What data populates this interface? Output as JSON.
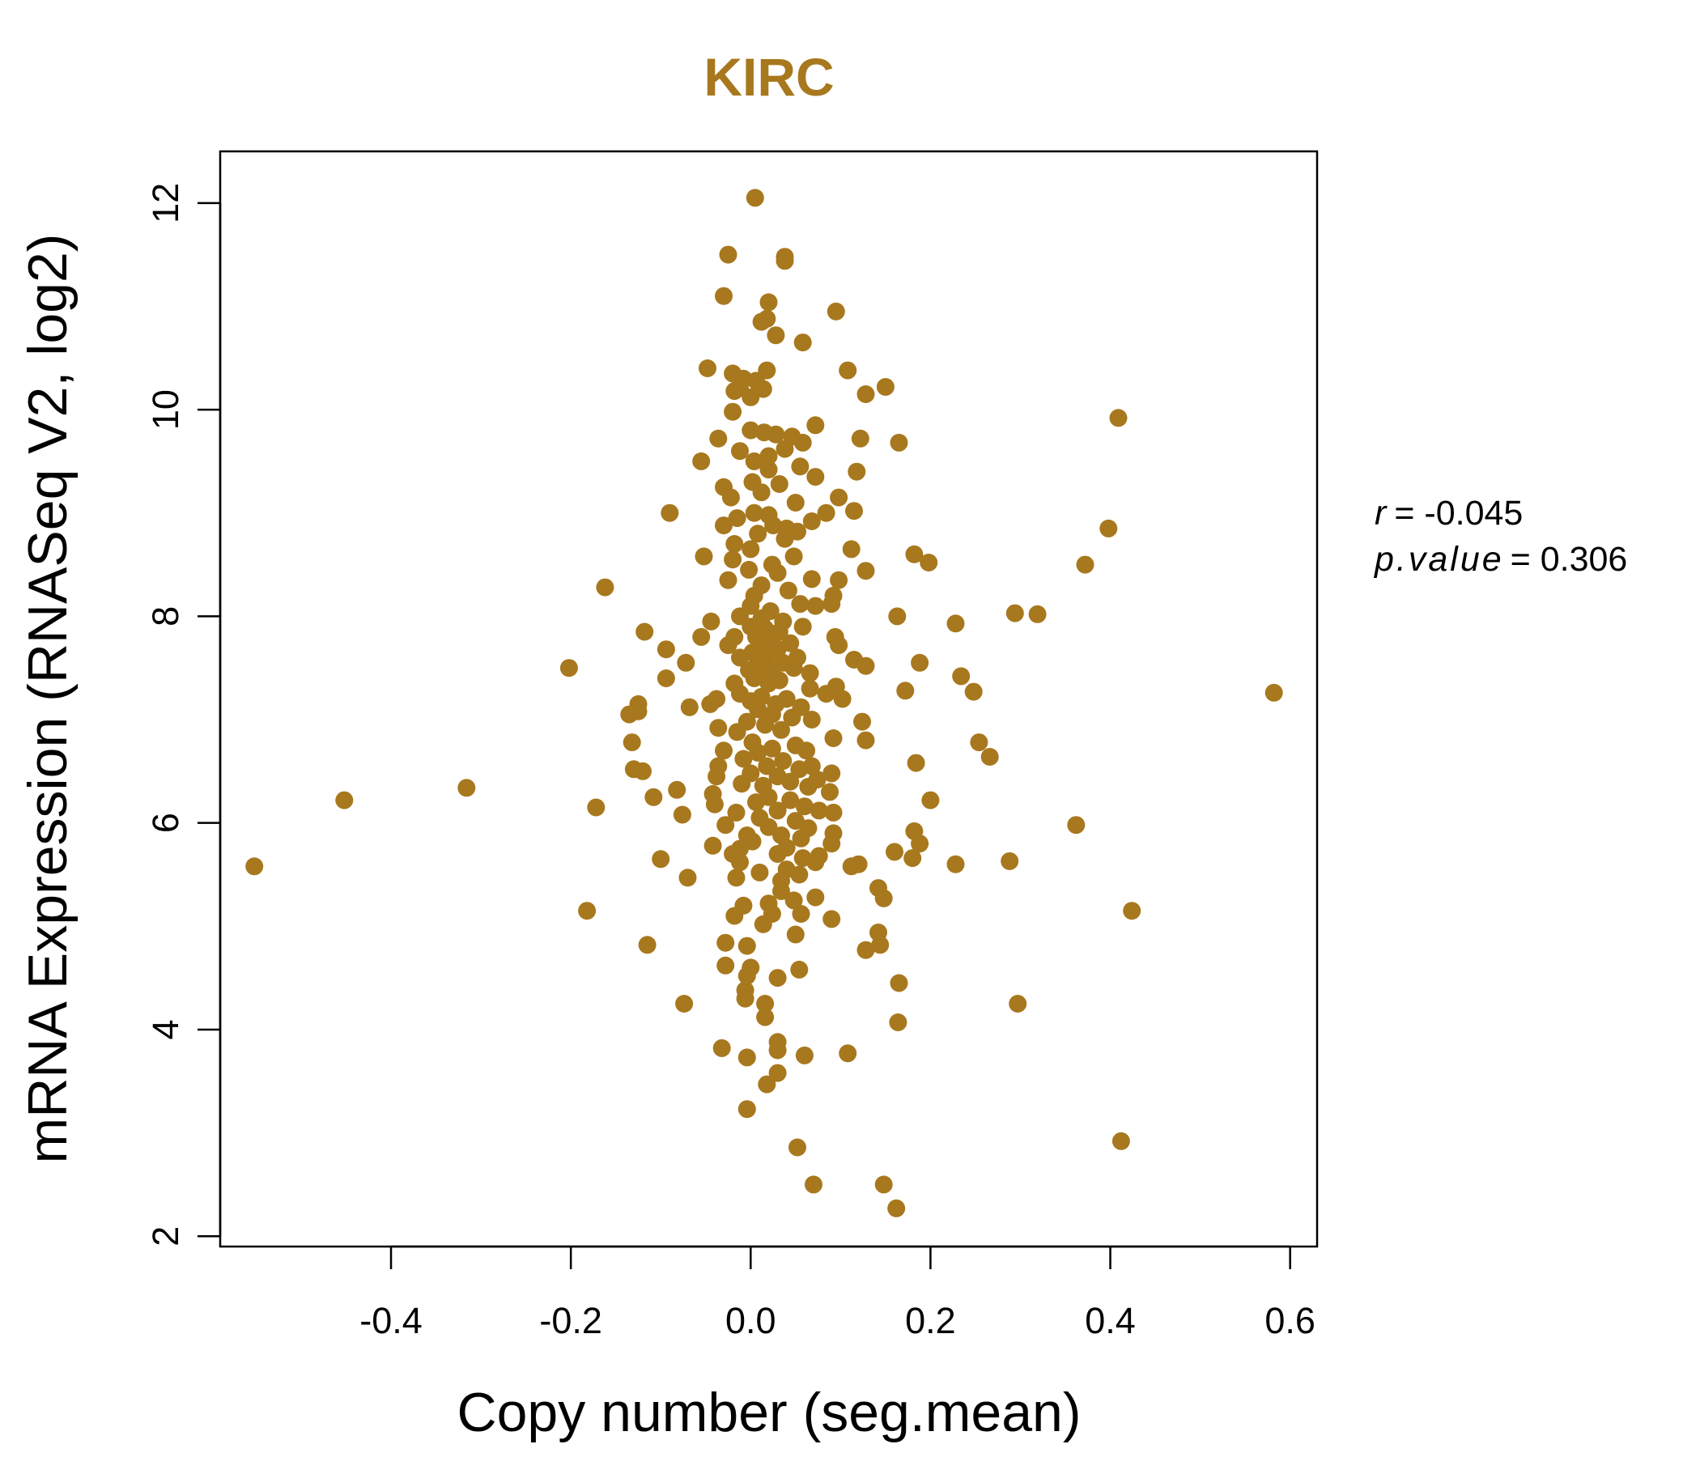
{
  "chart_data": {
    "type": "scatter",
    "title": "KIRC",
    "xlabel": "Copy number (seg.mean)",
    "ylabel": "mRNA Expression (RNASeq V2, log2)",
    "xlim": [
      -0.59,
      0.63
    ],
    "ylim": [
      1.9,
      12.5
    ],
    "xticks": [
      -0.4,
      -0.2,
      0.0,
      0.2,
      0.4,
      0.6
    ],
    "xtick_labels": [
      "-0.4",
      "-0.2",
      "0.0",
      "0.2",
      "0.4",
      "0.6"
    ],
    "yticks": [
      2,
      4,
      6,
      8,
      10,
      12
    ],
    "ytick_labels": [
      "2",
      "4",
      "6",
      "8",
      "10",
      "12"
    ],
    "grid": false,
    "point_color": "#A8781E",
    "stats": {
      "r_label": "r",
      "r_value": "= -0.045",
      "p_label": "p.value",
      "p_value": "= 0.306"
    },
    "points": [
      [
        0.005,
        12.05
      ],
      [
        -0.025,
        11.5
      ],
      [
        0.038,
        11.48
      ],
      [
        0.038,
        11.44
      ],
      [
        -0.03,
        11.1
      ],
      [
        0.02,
        11.04
      ],
      [
        0.095,
        10.95
      ],
      [
        0.018,
        10.88
      ],
      [
        0.012,
        10.85
      ],
      [
        0.028,
        10.72
      ],
      [
        0.058,
        10.65
      ],
      [
        -0.048,
        10.4
      ],
      [
        -0.02,
        10.35
      ],
      [
        0.018,
        10.38
      ],
      [
        0.108,
        10.38
      ],
      [
        0.15,
        10.22
      ],
      [
        0.128,
        10.15
      ],
      [
        -0.008,
        10.3
      ],
      [
        0.006,
        10.28
      ],
      [
        -0.012,
        10.21
      ],
      [
        -0.018,
        10.18
      ],
      [
        0.014,
        10.2
      ],
      [
        0.0,
        10.12
      ],
      [
        -0.02,
        9.98
      ],
      [
        0.0,
        9.8
      ],
      [
        0.015,
        9.78
      ],
      [
        0.028,
        9.76
      ],
      [
        0.046,
        9.74
      ],
      [
        0.072,
        9.85
      ],
      [
        0.122,
        9.72
      ],
      [
        0.165,
        9.68
      ],
      [
        0.409,
        9.92
      ],
      [
        -0.036,
        9.72
      ],
      [
        -0.055,
        9.5
      ],
      [
        -0.012,
        9.6
      ],
      [
        0.02,
        9.55
      ],
      [
        0.038,
        9.62
      ],
      [
        0.058,
        9.68
      ],
      [
        0.004,
        9.5
      ],
      [
        0.02,
        9.42
      ],
      [
        0.055,
        9.45
      ],
      [
        0.072,
        9.35
      ],
      [
        0.118,
        9.4
      ],
      [
        0.002,
        9.3
      ],
      [
        0.032,
        9.28
      ],
      [
        -0.03,
        9.25
      ],
      [
        -0.022,
        9.15
      ],
      [
        0.012,
        9.2
      ],
      [
        0.098,
        9.15
      ],
      [
        0.05,
        9.1
      ],
      [
        -0.09,
        9.0
      ],
      [
        0.004,
        9.0
      ],
      [
        0.02,
        8.98
      ],
      [
        0.084,
        9.0
      ],
      [
        0.115,
        9.02
      ],
      [
        0.068,
        8.92
      ],
      [
        -0.015,
        8.95
      ],
      [
        0.025,
        8.88
      ],
      [
        0.04,
        8.85
      ],
      [
        -0.03,
        8.88
      ],
      [
        0.008,
        8.8
      ],
      [
        0.038,
        8.75
      ],
      [
        0.052,
        8.82
      ],
      [
        0.398,
        8.85
      ],
      [
        -0.018,
        8.7
      ],
      [
        0.0,
        8.65
      ],
      [
        0.112,
        8.65
      ],
      [
        0.182,
        8.6
      ],
      [
        0.198,
        8.52
      ],
      [
        0.372,
        8.5
      ],
      [
        -0.052,
        8.58
      ],
      [
        -0.02,
        8.55
      ],
      [
        0.024,
        8.5
      ],
      [
        0.048,
        8.58
      ],
      [
        0.128,
        8.44
      ],
      [
        -0.002,
        8.45
      ],
      [
        0.03,
        8.42
      ],
      [
        0.068,
        8.36
      ],
      [
        0.098,
        8.35
      ],
      [
        -0.025,
        8.35
      ],
      [
        0.012,
        8.3
      ],
      [
        -0.162,
        8.28
      ],
      [
        0.042,
        8.25
      ],
      [
        0.092,
        8.2
      ],
      [
        0.004,
        8.2
      ],
      [
        0.055,
        8.12
      ],
      [
        0.072,
        8.1
      ],
      [
        0.09,
        8.12
      ],
      [
        0.0,
        8.1
      ],
      [
        0.022,
        8.05
      ],
      [
        0.294,
        8.03
      ],
      [
        0.319,
        8.02
      ],
      [
        0.163,
        8.0
      ],
      [
        -0.012,
        8.0
      ],
      [
        0.012,
        7.98
      ],
      [
        0.036,
        7.95
      ],
      [
        -0.044,
        7.95
      ],
      [
        0.228,
        7.93
      ],
      [
        0.058,
        7.9
      ],
      [
        0.0,
        7.9
      ],
      [
        0.016,
        7.88
      ],
      [
        -0.118,
        7.85
      ],
      [
        0.032,
        7.85
      ],
      [
        -0.018,
        7.8
      ],
      [
        0.006,
        7.8
      ],
      [
        0.094,
        7.8
      ],
      [
        -0.055,
        7.8
      ],
      [
        0.024,
        7.75
      ],
      [
        0.044,
        7.74
      ],
      [
        0.098,
        7.72
      ],
      [
        -0.025,
        7.72
      ],
      [
        0.01,
        7.7
      ],
      [
        -0.094,
        7.68
      ],
      [
        0.03,
        7.68
      ],
      [
        0.002,
        7.65
      ],
      [
        0.018,
        7.62
      ],
      [
        0.052,
        7.6
      ],
      [
        0.115,
        7.58
      ],
      [
        -0.012,
        7.6
      ],
      [
        0.188,
        7.55
      ],
      [
        -0.072,
        7.55
      ],
      [
        0.008,
        7.55
      ],
      [
        0.036,
        7.55
      ],
      [
        0.128,
        7.52
      ],
      [
        -0.202,
        7.5
      ],
      [
        0.024,
        7.5
      ],
      [
        0.048,
        7.5
      ],
      [
        -0.002,
        7.48
      ],
      [
        0.014,
        7.45
      ],
      [
        0.066,
        7.45
      ],
      [
        0.234,
        7.42
      ],
      [
        -0.094,
        7.4
      ],
      [
        0.004,
        7.4
      ],
      [
        0.032,
        7.38
      ],
      [
        -0.018,
        7.35
      ],
      [
        0.02,
        7.35
      ],
      [
        0.095,
        7.32
      ],
      [
        0.066,
        7.3
      ],
      [
        0.172,
        7.28
      ],
      [
        0.248,
        7.27
      ],
      [
        0.582,
        7.26
      ],
      [
        -0.012,
        7.25
      ],
      [
        0.012,
        7.22
      ],
      [
        0.084,
        7.25
      ],
      [
        0.04,
        7.2
      ],
      [
        -0.038,
        7.2
      ],
      [
        0.102,
        7.2
      ],
      [
        0.0,
        7.18
      ],
      [
        0.028,
        7.15
      ],
      [
        -0.125,
        7.15
      ],
      [
        -0.045,
        7.15
      ],
      [
        0.056,
        7.12
      ],
      [
        -0.068,
        7.12
      ],
      [
        0.008,
        7.1
      ],
      [
        -0.125,
        7.08
      ],
      [
        0.024,
        7.05
      ],
      [
        -0.135,
        7.05
      ],
      [
        0.046,
        7.02
      ],
      [
        0.068,
        7.0
      ],
      [
        0.124,
        6.98
      ],
      [
        -0.004,
        6.98
      ],
      [
        -0.036,
        6.92
      ],
      [
        0.016,
        6.95
      ],
      [
        0.034,
        6.9
      ],
      [
        -0.015,
        6.88
      ],
      [
        0.092,
        6.82
      ],
      [
        0.128,
        6.8
      ],
      [
        0.254,
        6.78
      ],
      [
        -0.132,
        6.78
      ],
      [
        0.002,
        6.78
      ],
      [
        0.05,
        6.75
      ],
      [
        0.024,
        6.72
      ],
      [
        -0.03,
        6.7
      ],
      [
        0.062,
        6.7
      ],
      [
        0.008,
        6.68
      ],
      [
        -0.008,
        6.62
      ],
      [
        0.266,
        6.64
      ],
      [
        0.036,
        6.6
      ],
      [
        0.184,
        6.58
      ],
      [
        0.068,
        6.55
      ],
      [
        -0.036,
        6.55
      ],
      [
        0.018,
        6.55
      ],
      [
        0.054,
        6.52
      ],
      [
        -0.13,
        6.52
      ],
      [
        -0.12,
        6.5
      ],
      [
        0.09,
        6.48
      ],
      [
        0.0,
        6.48
      ],
      [
        -0.038,
        6.45
      ],
      [
        0.03,
        6.45
      ],
      [
        0.074,
        6.42
      ],
      [
        0.044,
        6.4
      ],
      [
        -0.01,
        6.38
      ],
      [
        0.014,
        6.36
      ],
      [
        -0.316,
        6.34
      ],
      [
        0.064,
        6.35
      ],
      [
        -0.082,
        6.32
      ],
      [
        0.088,
        6.3
      ],
      [
        -0.042,
        6.28
      ],
      [
        0.02,
        6.25
      ],
      [
        -0.108,
        6.25
      ],
      [
        0.2,
        6.22
      ],
      [
        -0.452,
        6.22
      ],
      [
        0.044,
        6.22
      ],
      [
        0.006,
        6.2
      ],
      [
        -0.04,
        6.18
      ],
      [
        0.06,
        6.16
      ],
      [
        -0.172,
        6.15
      ],
      [
        0.03,
        6.12
      ],
      [
        0.076,
        6.12
      ],
      [
        0.092,
        6.1
      ],
      [
        -0.016,
        6.1
      ],
      [
        -0.076,
        6.08
      ],
      [
        0.01,
        6.05
      ],
      [
        0.05,
        6.02
      ],
      [
        0.362,
        5.98
      ],
      [
        -0.028,
        5.98
      ],
      [
        0.02,
        5.96
      ],
      [
        0.064,
        5.95
      ],
      [
        0.182,
        5.92
      ],
      [
        0.092,
        5.9
      ],
      [
        -0.004,
        5.88
      ],
      [
        0.034,
        5.88
      ],
      [
        0.056,
        5.85
      ],
      [
        0.002,
        5.82
      ],
      [
        0.188,
        5.8
      ],
      [
        0.09,
        5.8
      ],
      [
        -0.042,
        5.78
      ],
      [
        0.04,
        5.76
      ],
      [
        -0.012,
        5.75
      ],
      [
        0.16,
        5.72
      ],
      [
        0.03,
        5.7
      ],
      [
        -0.02,
        5.7
      ],
      [
        0.076,
        5.68
      ],
      [
        0.058,
        5.66
      ],
      [
        0.18,
        5.66
      ],
      [
        -0.1,
        5.65
      ],
      [
        0.288,
        5.63
      ],
      [
        0.072,
        5.62
      ],
      [
        -0.012,
        5.62
      ],
      [
        0.228,
        5.6
      ],
      [
        0.12,
        5.6
      ],
      [
        0.112,
        5.58
      ],
      [
        -0.552,
        5.58
      ],
      [
        0.04,
        5.55
      ],
      [
        0.01,
        5.52
      ],
      [
        0.054,
        5.5
      ],
      [
        -0.07,
        5.47
      ],
      [
        -0.016,
        5.47
      ],
      [
        0.034,
        5.44
      ],
      [
        0.142,
        5.37
      ],
      [
        0.034,
        5.34
      ],
      [
        0.148,
        5.27
      ],
      [
        0.048,
        5.25
      ],
      [
        0.072,
        5.28
      ],
      [
        0.02,
        5.22
      ],
      [
        -0.008,
        5.2
      ],
      [
        0.424,
        5.15
      ],
      [
        -0.182,
        5.15
      ],
      [
        0.056,
        5.12
      ],
      [
        0.024,
        5.12
      ],
      [
        -0.018,
        5.1
      ],
      [
        0.09,
        5.07
      ],
      [
        0.014,
        5.02
      ],
      [
        0.142,
        4.94
      ],
      [
        0.05,
        4.92
      ],
      [
        0.144,
        4.82
      ],
      [
        0.128,
        4.77
      ],
      [
        -0.028,
        4.84
      ],
      [
        -0.115,
        4.82
      ],
      [
        -0.004,
        4.81
      ],
      [
        -0.028,
        4.62
      ],
      [
        0.0,
        4.6
      ],
      [
        0.054,
        4.58
      ],
      [
        -0.004,
        4.52
      ],
      [
        0.03,
        4.5
      ],
      [
        0.165,
        4.45
      ],
      [
        -0.006,
        4.38
      ],
      [
        -0.006,
        4.3
      ],
      [
        0.016,
        4.25
      ],
      [
        -0.074,
        4.25
      ],
      [
        0.297,
        4.25
      ],
      [
        0.016,
        4.12
      ],
      [
        0.164,
        4.07
      ],
      [
        0.03,
        3.88
      ],
      [
        0.03,
        3.8
      ],
      [
        -0.032,
        3.82
      ],
      [
        0.108,
        3.77
      ],
      [
        0.06,
        3.75
      ],
      [
        -0.004,
        3.73
      ],
      [
        0.03,
        3.58
      ],
      [
        0.018,
        3.47
      ],
      [
        -0.004,
        3.23
      ],
      [
        0.412,
        2.92
      ],
      [
        0.052,
        2.86
      ],
      [
        0.07,
        2.5
      ],
      [
        0.148,
        2.5
      ],
      [
        0.162,
        2.27
      ]
    ]
  }
}
